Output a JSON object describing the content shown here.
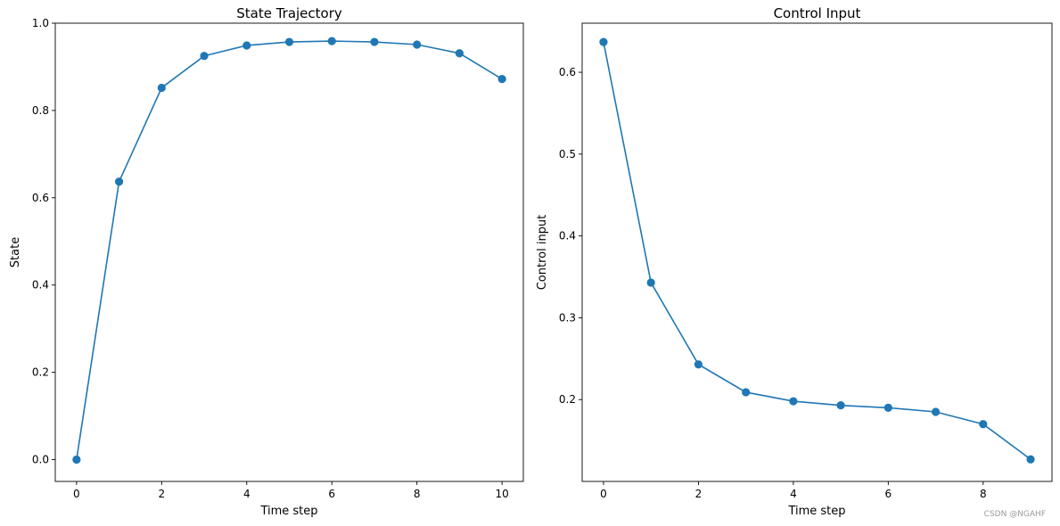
{
  "colors": {
    "series": "#1f77b4",
    "axes": "#000000",
    "background": "#ffffff"
  },
  "watermark": "CSDN @NGAHF",
  "chart_data": [
    {
      "type": "line",
      "title": "State Trajectory",
      "xlabel": "Time step",
      "ylabel": "State",
      "xlim": [
        -0.5,
        10.5
      ],
      "ylim": [
        -0.05,
        1.0
      ],
      "xticks": [
        0,
        2,
        4,
        6,
        8,
        10
      ],
      "yticks": [
        0.0,
        0.2,
        0.4,
        0.6,
        0.8,
        1.0
      ],
      "ytick_labels": [
        "0.0",
        "0.2",
        "0.4",
        "0.6",
        "0.8",
        "1.0"
      ],
      "grid": false,
      "marker": "circle",
      "series": [
        {
          "x": [
            0,
            1,
            2,
            3,
            4,
            5,
            6,
            7,
            8,
            9,
            10
          ],
          "values": [
            0.0,
            0.637,
            0.852,
            0.925,
            0.949,
            0.957,
            0.959,
            0.957,
            0.951,
            0.931,
            0.872
          ]
        }
      ]
    },
    {
      "type": "line",
      "title": "Control Input",
      "xlabel": "Time step",
      "ylabel": "Control input",
      "xlim": [
        -0.45,
        9.45
      ],
      "ylim": [
        0.1,
        0.66
      ],
      "xticks": [
        0,
        2,
        4,
        6,
        8
      ],
      "yticks": [
        0.2,
        0.3,
        0.4,
        0.5,
        0.6
      ],
      "ytick_labels": [
        "0.2",
        "0.3",
        "0.4",
        "0.5",
        "0.6"
      ],
      "grid": false,
      "marker": "circle",
      "series": [
        {
          "x": [
            0,
            1,
            2,
            3,
            4,
            5,
            6,
            7,
            8,
            9
          ],
          "values": [
            0.637,
            0.343,
            0.243,
            0.209,
            0.198,
            0.193,
            0.19,
            0.185,
            0.17,
            0.127
          ]
        }
      ]
    }
  ]
}
